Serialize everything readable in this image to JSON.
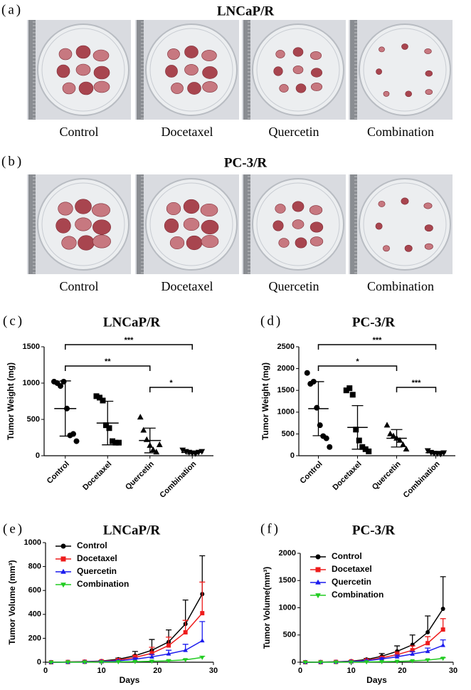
{
  "photo_panels": [
    {
      "label": "(a)",
      "title": "LNCaP/R",
      "captions": [
        "Control",
        "Docetaxel",
        "Quercetin",
        "Combination"
      ]
    },
    {
      "label": "(b)",
      "title": "PC-3/R",
      "captions": [
        "Control",
        "Docetaxel",
        "Quercetin",
        "Combination"
      ]
    }
  ],
  "chart_data": [
    {
      "type": "strip",
      "label": "(c)",
      "title": "LNCaP/R",
      "ylabel": "Tumor Weight (mg)",
      "categories": [
        "Control",
        "Docetaxel",
        "Quercetin",
        "Combination"
      ],
      "ylim": [
        0,
        1500
      ],
      "yticks": [
        0,
        500,
        1000,
        1500
      ],
      "groups": [
        {
          "marker": "circle",
          "points": [
            1020,
            1000,
            960,
            1020,
            650,
            280,
            300,
            200
          ],
          "mean": 650,
          "sd": 380
        },
        {
          "marker": "square",
          "points": [
            820,
            800,
            760,
            420,
            380,
            200,
            180,
            180
          ],
          "mean": 450,
          "sd": 300
        },
        {
          "marker": "triangle",
          "points": [
            530,
            350,
            220,
            140,
            80,
            50,
            150
          ],
          "mean": 210,
          "sd": 170
        },
        {
          "marker": "triangle-down",
          "points": [
            80,
            60,
            50,
            40,
            30,
            50,
            60
          ],
          "mean": 45,
          "sd": 20
        }
      ],
      "comparisons": [
        {
          "from": "Control",
          "to": "Combination",
          "label": "***"
        },
        {
          "from": "Control",
          "to": "Quercetin",
          "label": "**"
        },
        {
          "from": "Quercetin",
          "to": "Combination",
          "label": "*"
        }
      ]
    },
    {
      "type": "strip",
      "label": "(d)",
      "title": "PC-3/R",
      "ylabel": "Tumor Weight (mg)",
      "categories": [
        "Control",
        "Docetaxel",
        "Quercetin",
        "Combination"
      ],
      "ylim": [
        0,
        2500
      ],
      "yticks": [
        0,
        500,
        1000,
        1500,
        2000,
        2500
      ],
      "groups": [
        {
          "marker": "circle",
          "points": [
            1900,
            1650,
            1700,
            1100,
            700,
            450,
            400,
            200
          ],
          "mean": 1080,
          "sd": 620
        },
        {
          "marker": "square",
          "points": [
            1500,
            1550,
            1400,
            600,
            350,
            200,
            150,
            100
          ],
          "mean": 650,
          "sd": 500
        },
        {
          "marker": "triangle",
          "points": [
            700,
            500,
            450,
            400,
            350,
            250,
            150
          ],
          "mean": 400,
          "sd": 200
        },
        {
          "marker": "triangle-down",
          "points": [
            120,
            80,
            60,
            50,
            40,
            70
          ],
          "mean": 70,
          "sd": 30
        }
      ],
      "comparisons": [
        {
          "from": "Control",
          "to": "Combination",
          "label": "***"
        },
        {
          "from": "Control",
          "to": "Quercetin",
          "label": "*"
        },
        {
          "from": "Quercetin",
          "to": "Combination",
          "label": "***"
        }
      ]
    },
    {
      "type": "line",
      "label": "(e)",
      "title": "LNCaP/R",
      "ylabel": "Tumor Volume (mm³)",
      "xlabel": "Days",
      "x": [
        1,
        4,
        7,
        10,
        13,
        16,
        19,
        22,
        25,
        28
      ],
      "xlim": [
        0,
        30
      ],
      "xticks": [
        0,
        10,
        20,
        30
      ],
      "ylim": [
        0,
        1000
      ],
      "yticks": [
        0,
        200,
        400,
        600,
        800,
        1000
      ],
      "legend": "upper left",
      "series": [
        {
          "name": "Control",
          "color": "#000000",
          "marker": "circle",
          "values": [
            0,
            2,
            5,
            10,
            25,
            55,
            100,
            170,
            320,
            570
          ],
          "errors": [
            0,
            1,
            2,
            5,
            10,
            35,
            90,
            100,
            200,
            320
          ]
        },
        {
          "name": "Docetaxel",
          "color": "#ee1c1c",
          "marker": "square",
          "values": [
            0,
            2,
            4,
            8,
            18,
            40,
            75,
            140,
            250,
            410
          ],
          "errors": [
            0,
            1,
            2,
            4,
            8,
            20,
            50,
            70,
            100,
            260
          ]
        },
        {
          "name": "Quercetin",
          "color": "#1c1cee",
          "marker": "triangle",
          "values": [
            0,
            1,
            3,
            6,
            12,
            25,
            45,
            70,
            100,
            180
          ],
          "errors": [
            0,
            1,
            1,
            3,
            5,
            10,
            20,
            30,
            50,
            160
          ]
        },
        {
          "name": "Combination",
          "color": "#22cc22",
          "marker": "triangle-down",
          "values": [
            0,
            1,
            1,
            2,
            3,
            5,
            8,
            12,
            20,
            40
          ],
          "errors": [
            0,
            0,
            1,
            1,
            1,
            2,
            3,
            4,
            5,
            10
          ]
        }
      ]
    },
    {
      "type": "line",
      "label": "(f)",
      "title": "PC-3/R",
      "ylabel": "Tumor Volume(mm³)",
      "xlabel": "Days",
      "x": [
        1,
        4,
        7,
        10,
        13,
        16,
        19,
        22,
        25,
        28
      ],
      "xlim": [
        0,
        30
      ],
      "xticks": [
        0,
        10,
        20,
        30
      ],
      "ylim": [
        0,
        2000
      ],
      "yticks": [
        0,
        500,
        1000,
        1500,
        2000
      ],
      "legend": "upper left",
      "series": [
        {
          "name": "Control",
          "color": "#000000",
          "marker": "circle",
          "values": [
            0,
            3,
            8,
            20,
            50,
            110,
            200,
            320,
            550,
            980
          ],
          "errors": [
            0,
            2,
            4,
            8,
            20,
            50,
            100,
            180,
            300,
            590
          ]
        },
        {
          "name": "Docetaxel",
          "color": "#ee1c1c",
          "marker": "square",
          "values": [
            0,
            2,
            6,
            15,
            35,
            80,
            140,
            220,
            350,
            600
          ],
          "errors": [
            0,
            1,
            3,
            6,
            15,
            30,
            50,
            80,
            120,
            200
          ]
        },
        {
          "name": "Quercetin",
          "color": "#1c1cee",
          "marker": "triangle",
          "values": [
            0,
            2,
            5,
            12,
            28,
            60,
            100,
            150,
            200,
            310
          ],
          "errors": [
            0,
            1,
            2,
            5,
            10,
            20,
            30,
            45,
            60,
            100
          ]
        },
        {
          "name": "Combination",
          "color": "#22cc22",
          "marker": "triangle-down",
          "values": [
            0,
            1,
            2,
            3,
            5,
            10,
            15,
            25,
            40,
            70
          ],
          "errors": [
            0,
            0,
            1,
            1,
            2,
            3,
            4,
            6,
            8,
            12
          ]
        }
      ]
    }
  ]
}
